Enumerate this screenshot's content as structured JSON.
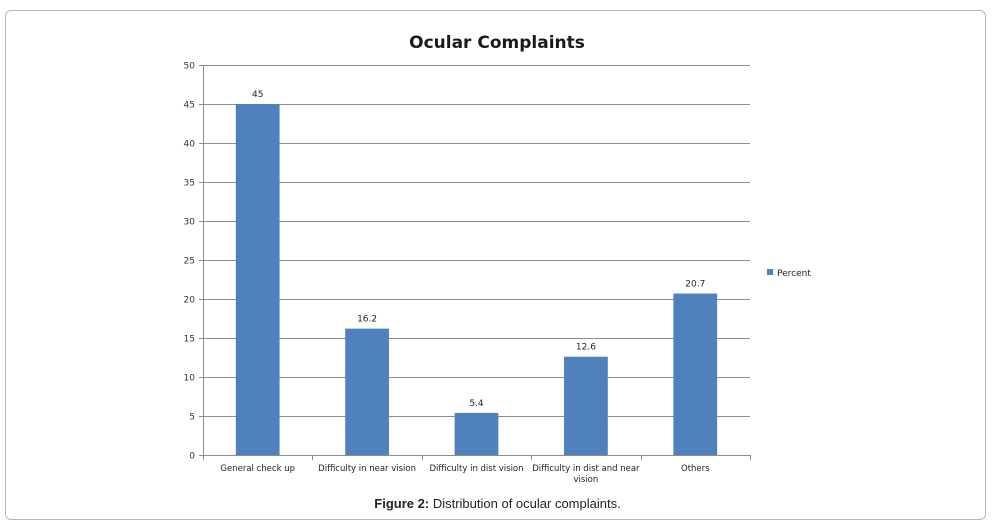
{
  "caption": {
    "label": "Figure 2:",
    "text": "Distribution of ocular complaints."
  },
  "colors": {
    "bar": "#4f81bd",
    "grid": "#8c8c8c",
    "axis": "#8c8c8c"
  },
  "chart_data": {
    "type": "bar",
    "title": "Ocular Complaints",
    "xlabel": "",
    "ylabel": "",
    "categories": [
      "General check up",
      "Difficulty in near vision",
      "Difficulty in dist vision",
      "Difficulty in dist and near vision",
      "Others"
    ],
    "category_label_lines": [
      [
        "General check up"
      ],
      [
        "Difficulty in near vision"
      ],
      [
        "Difficulty in dist vision"
      ],
      [
        "Difficulty in dist and near",
        "vision"
      ],
      [
        "Others"
      ]
    ],
    "series": [
      {
        "name": "Percent",
        "values": [
          45,
          16.2,
          5.4,
          12.6,
          20.7
        ]
      }
    ],
    "data_labels": [
      "45",
      "16.2",
      "5.4",
      "12.6",
      "20.7"
    ],
    "ylim": [
      0,
      50
    ],
    "yticks": [
      0,
      5,
      10,
      15,
      20,
      25,
      30,
      35,
      40,
      45,
      50
    ],
    "grid": true,
    "legend": "right"
  }
}
